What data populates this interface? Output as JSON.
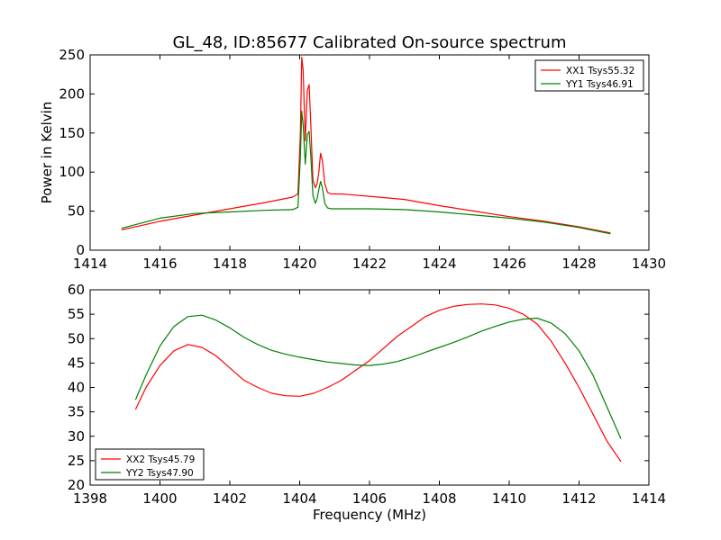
{
  "figure": {
    "title": "GL_48, ID:85677 Calibrated On-source spectrum",
    "xlabel": "Frequency (MHz)"
  },
  "chart_data": [
    {
      "type": "line",
      "title": "GL_48, ID:85677 Calibrated On-source spectrum",
      "xlabel": "",
      "ylabel": "Power in Kelvin",
      "xlim": [
        1414,
        1430
      ],
      "ylim": [
        0,
        250
      ],
      "xticks": [
        1414,
        1416,
        1418,
        1420,
        1422,
        1424,
        1426,
        1428,
        1430
      ],
      "yticks": [
        0,
        50,
        100,
        150,
        200,
        250
      ],
      "grid": false,
      "legend": "top-right",
      "series": [
        {
          "name": "XX1 Tsys55.32",
          "color": "#ff0000",
          "x": [
            1414.9,
            1416,
            1417,
            1418,
            1419,
            1419.8,
            1419.95,
            1420.02,
            1420.06,
            1420.1,
            1420.16,
            1420.22,
            1420.27,
            1420.32,
            1420.38,
            1420.45,
            1420.5,
            1420.55,
            1420.6,
            1420.65,
            1420.72,
            1420.8,
            1420.9,
            1421.2,
            1422,
            1423,
            1424,
            1425,
            1426,
            1427,
            1428,
            1428.9
          ],
          "y": [
            26,
            37,
            45,
            53,
            61,
            68,
            72,
            150,
            247,
            230,
            140,
            205,
            212,
            160,
            90,
            80,
            85,
            100,
            124,
            115,
            85,
            74,
            72,
            72,
            69,
            65,
            57,
            50,
            43,
            37,
            30,
            22
          ]
        },
        {
          "name": "YY1 Tsys46.91",
          "color": "#008000",
          "x": [
            1414.9,
            1416,
            1417,
            1418,
            1419,
            1419.8,
            1419.95,
            1420.02,
            1420.06,
            1420.1,
            1420.16,
            1420.22,
            1420.27,
            1420.32,
            1420.38,
            1420.45,
            1420.5,
            1420.55,
            1420.6,
            1420.65,
            1420.72,
            1420.8,
            1420.9,
            1421.2,
            1422,
            1423,
            1424,
            1425,
            1426,
            1427,
            1428,
            1428.9
          ],
          "y": [
            28,
            41,
            47,
            49,
            51,
            52,
            55,
            120,
            178,
            160,
            110,
            148,
            152,
            120,
            70,
            60,
            66,
            78,
            88,
            80,
            60,
            54,
            53,
            53,
            53,
            52,
            49,
            45,
            41,
            36,
            29,
            21
          ]
        }
      ]
    },
    {
      "type": "line",
      "xlabel": "Frequency (MHz)",
      "ylabel": "",
      "xlim": [
        1398,
        1414
      ],
      "ylim": [
        20,
        60
      ],
      "xticks": [
        1398,
        1400,
        1402,
        1404,
        1406,
        1408,
        1410,
        1412,
        1414
      ],
      "yticks": [
        20,
        25,
        30,
        35,
        40,
        45,
        50,
        55,
        60
      ],
      "grid": false,
      "legend": "bottom-left",
      "series": [
        {
          "name": "XX2 Tsys45.79",
          "color": "#ff0000",
          "x": [
            1399.3,
            1399.6,
            1400,
            1400.4,
            1400.8,
            1401.2,
            1401.6,
            1402,
            1402.4,
            1402.8,
            1403.2,
            1403.6,
            1404,
            1404.4,
            1404.8,
            1405.2,
            1405.6,
            1406,
            1406.4,
            1406.8,
            1407.2,
            1407.6,
            1408,
            1408.4,
            1408.8,
            1409.2,
            1409.6,
            1410,
            1410.4,
            1410.8,
            1411.2,
            1411.6,
            1412,
            1412.4,
            1412.8,
            1413.2
          ],
          "y": [
            35.5,
            40,
            44.5,
            47.5,
            48.8,
            48.2,
            46.5,
            44,
            41.5,
            40,
            38.8,
            38.3,
            38.2,
            38.8,
            40,
            41.5,
            43.5,
            45.5,
            48,
            50.5,
            52.5,
            54.5,
            55.8,
            56.6,
            57,
            57.1,
            56.9,
            56.2,
            55,
            53,
            49.5,
            45,
            40,
            34.5,
            29,
            24.8
          ]
        },
        {
          "name": "YY2 Tsys47.90",
          "color": "#008000",
          "x": [
            1399.3,
            1399.6,
            1400,
            1400.4,
            1400.8,
            1401.2,
            1401.6,
            1402,
            1402.4,
            1402.8,
            1403.2,
            1403.6,
            1404,
            1404.4,
            1404.8,
            1405.2,
            1405.6,
            1406,
            1406.4,
            1406.8,
            1407.2,
            1407.6,
            1408,
            1408.4,
            1408.8,
            1409.2,
            1409.6,
            1410,
            1410.4,
            1410.8,
            1411.2,
            1411.6,
            1412,
            1412.4,
            1412.8,
            1413.2
          ],
          "y": [
            37.5,
            42.5,
            48.5,
            52.5,
            54.5,
            54.8,
            53.8,
            52.2,
            50.3,
            48.8,
            47.6,
            46.8,
            46.2,
            45.7,
            45.2,
            44.9,
            44.6,
            44.5,
            44.8,
            45.3,
            46.2,
            47.2,
            48.2,
            49.2,
            50.3,
            51.5,
            52.5,
            53.4,
            54,
            54.2,
            53.2,
            51,
            47.5,
            42.5,
            36,
            29.5
          ]
        }
      ]
    }
  ]
}
